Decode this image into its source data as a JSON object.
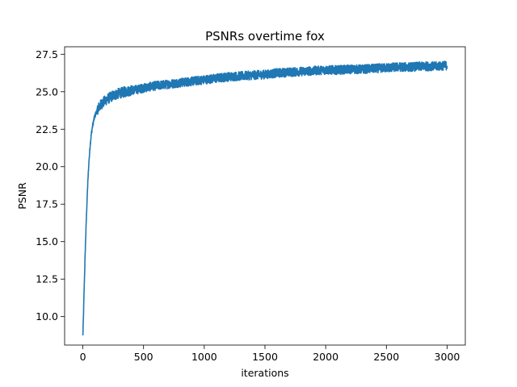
{
  "chart_data": {
    "type": "line",
    "title": "PSNRs overtime fox",
    "xlabel": "iterations",
    "ylabel": "PSNR",
    "xlim": [
      -150,
      3150
    ],
    "ylim": [
      8.1,
      28.0
    ],
    "xticks": [
      0,
      500,
      1000,
      1500,
      2000,
      2500,
      3000
    ],
    "xtick_labels": [
      "0",
      "500",
      "1000",
      "1500",
      "2000",
      "2500",
      "3000"
    ],
    "yticks": [
      10.0,
      12.5,
      15.0,
      17.5,
      20.0,
      22.5,
      25.0,
      27.5
    ],
    "ytick_labels": [
      "10.0",
      "12.5",
      "15.0",
      "17.5",
      "20.0",
      "22.5",
      "25.0",
      "27.5"
    ],
    "grid": false,
    "line_color": "#1f77b4",
    "series": [
      {
        "x": [
          0,
          5,
          10,
          15,
          20,
          25,
          30,
          40,
          50,
          60,
          70,
          80,
          90,
          100,
          110,
          120,
          130,
          140,
          150,
          175,
          200,
          250,
          300,
          350,
          400,
          450,
          500,
          600,
          700,
          800,
          900,
          1000,
          1100,
          1200,
          1300,
          1400,
          1500,
          1600,
          1700,
          1800,
          1900,
          2000,
          2100,
          2200,
          2300,
          2400,
          2500,
          2600,
          2700,
          2800,
          2900,
          3000
        ],
        "y": [
          8.7,
          10.0,
          11.6,
          13.0,
          14.4,
          15.6,
          16.8,
          18.8,
          20.3,
          21.4,
          22.2,
          22.7,
          23.1,
          23.4,
          23.6,
          23.8,
          23.95,
          24.05,
          24.15,
          24.35,
          24.5,
          24.75,
          24.9,
          25.0,
          25.1,
          25.15,
          25.25,
          25.4,
          25.5,
          25.6,
          25.7,
          25.8,
          25.9,
          26.0,
          26.05,
          26.1,
          26.15,
          26.25,
          26.3,
          26.35,
          26.4,
          26.45,
          26.45,
          26.5,
          26.5,
          26.55,
          26.6,
          26.65,
          26.65,
          26.7,
          26.7,
          26.75
        ]
      }
    ]
  }
}
